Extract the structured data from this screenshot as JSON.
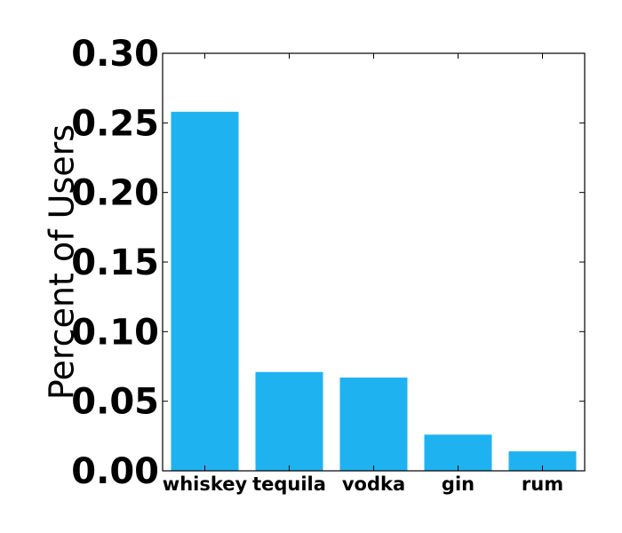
{
  "chart_data": {
    "type": "bar",
    "title": "",
    "xlabel": "",
    "ylabel": "Percent of Users",
    "categories": [
      "whiskey",
      "tequila",
      "vodka",
      "gin",
      "rum"
    ],
    "values": [
      0.258,
      0.071,
      0.067,
      0.026,
      0.014
    ],
    "ylim": [
      0,
      0.3
    ],
    "yticks": [
      0.0,
      0.05,
      0.1,
      0.15,
      0.2,
      0.25,
      0.3
    ],
    "ytick_labels": [
      "0.00",
      "0.05",
      "0.10",
      "0.15",
      "0.20",
      "0.25",
      "0.30"
    ],
    "grid": false,
    "bar_color": "#1fb2f1"
  }
}
